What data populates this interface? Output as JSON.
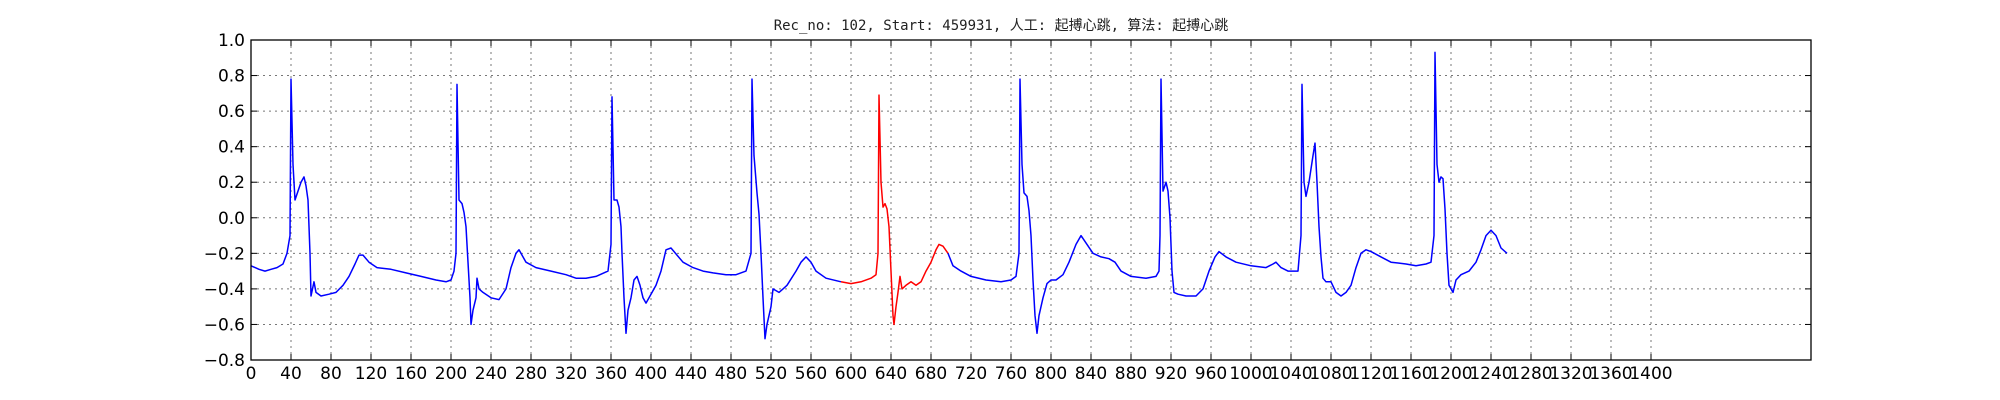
{
  "chart_data": {
    "type": "line",
    "title": "Rec_no: 102, Start: 459931, 人工: 起搏心跳, 算法: 起搏心跳",
    "xlabel": "",
    "ylabel": "",
    "xlim": [
      0,
      1560
    ],
    "ylim": [
      -0.8,
      1.0
    ],
    "grid": true,
    "y_ticks": [
      -0.8,
      -0.6,
      -0.4,
      -0.2,
      0.0,
      0.2,
      0.4,
      0.6,
      0.8,
      1.0
    ],
    "y_tick_labels": [
      "−0.8",
      "−0.6",
      "−0.4",
      "−0.2",
      "0.0",
      "0.2",
      "0.4",
      "0.6",
      "0.8",
      "1.0"
    ],
    "x_ticks": [
      0,
      40,
      80,
      120,
      160,
      200,
      240,
      280,
      320,
      360,
      400,
      440,
      480,
      520,
      560,
      600,
      640,
      680,
      720,
      760,
      800,
      840,
      880,
      920,
      960,
      1000,
      1040,
      1080,
      1120,
      1160,
      1200,
      1240,
      1280,
      1320,
      1360,
      1400
    ],
    "x_tick_labels": [
      "0",
      "40",
      "80",
      "120",
      "160",
      "200",
      "240",
      "280",
      "320",
      "360",
      "400",
      "440",
      "480",
      "520",
      "560",
      "600",
      "640",
      "680",
      "720",
      "760",
      "800",
      "840",
      "880",
      "920",
      "960",
      "1000",
      "1040",
      "1080",
      "1120",
      "1160",
      "1200",
      "1240",
      "1280",
      "1320",
      "1360",
      "1400"
    ],
    "series": [
      {
        "color": "#0000ff",
        "points": [
          [
            0,
            -0.27
          ],
          [
            8,
            -0.29
          ],
          [
            14,
            -0.3
          ],
          [
            20,
            -0.29
          ],
          [
            26,
            -0.28
          ],
          [
            32,
            -0.26
          ],
          [
            36,
            -0.2
          ],
          [
            39,
            -0.1
          ],
          [
            40,
            0.78
          ],
          [
            42,
            0.3
          ],
          [
            44,
            0.1
          ],
          [
            47,
            0.15
          ],
          [
            50,
            0.2
          ],
          [
            53,
            0.23
          ],
          [
            55,
            0.18
          ],
          [
            57,
            0.1
          ],
          [
            59,
            -0.2
          ],
          [
            60,
            -0.44
          ],
          [
            63,
            -0.36
          ],
          [
            65,
            -0.42
          ],
          [
            70,
            -0.44
          ],
          [
            78,
            -0.43
          ],
          [
            85,
            -0.42
          ],
          [
            92,
            -0.38
          ],
          [
            98,
            -0.33
          ],
          [
            104,
            -0.26
          ],
          [
            108,
            -0.21
          ],
          [
            112,
            -0.21
          ],
          [
            118,
            -0.25
          ],
          [
            126,
            -0.28
          ],
          [
            140,
            -0.29
          ],
          [
            155,
            -0.31
          ],
          [
            170,
            -0.33
          ],
          [
            185,
            -0.35
          ],
          [
            195,
            -0.36
          ],
          [
            200,
            -0.35
          ],
          [
            203,
            -0.3
          ],
          [
            205,
            -0.2
          ],
          [
            206,
            0.75
          ],
          [
            208,
            0.1
          ],
          [
            211,
            0.08
          ],
          [
            213,
            0.03
          ],
          [
            215,
            -0.05
          ],
          [
            217,
            -0.25
          ],
          [
            219,
            -0.45
          ],
          [
            220,
            -0.6
          ],
          [
            222,
            -0.52
          ],
          [
            225,
            -0.45
          ],
          [
            226,
            -0.34
          ],
          [
            228,
            -0.4
          ],
          [
            232,
            -0.42
          ],
          [
            240,
            -0.45
          ],
          [
            248,
            -0.46
          ],
          [
            255,
            -0.4
          ],
          [
            260,
            -0.28
          ],
          [
            265,
            -0.2
          ],
          [
            268,
            -0.18
          ],
          [
            275,
            -0.25
          ],
          [
            285,
            -0.28
          ],
          [
            300,
            -0.3
          ],
          [
            315,
            -0.32
          ],
          [
            325,
            -0.34
          ],
          [
            335,
            -0.34
          ],
          [
            345,
            -0.33
          ],
          [
            357,
            -0.3
          ],
          [
            360,
            -0.15
          ],
          [
            361,
            0.68
          ],
          [
            363,
            0.1
          ],
          [
            366,
            0.1
          ],
          [
            368,
            0.06
          ],
          [
            370,
            -0.05
          ],
          [
            371,
            -0.2
          ],
          [
            373,
            -0.45
          ],
          [
            375,
            -0.65
          ],
          [
            377,
            -0.52
          ],
          [
            380,
            -0.45
          ],
          [
            383,
            -0.35
          ],
          [
            386,
            -0.33
          ],
          [
            389,
            -0.38
          ],
          [
            392,
            -0.45
          ],
          [
            395,
            -0.48
          ],
          [
            400,
            -0.43
          ],
          [
            405,
            -0.38
          ],
          [
            410,
            -0.3
          ],
          [
            415,
            -0.18
          ],
          [
            420,
            -0.17
          ],
          [
            426,
            -0.21
          ],
          [
            432,
            -0.25
          ],
          [
            442,
            -0.28
          ],
          [
            452,
            -0.3
          ],
          [
            462,
            -0.31
          ],
          [
            475,
            -0.32
          ],
          [
            485,
            -0.32
          ],
          [
            495,
            -0.3
          ],
          [
            500,
            -0.2
          ],
          [
            501,
            0.78
          ],
          [
            503,
            0.35
          ],
          [
            506,
            0.14
          ],
          [
            508,
            0.02
          ],
          [
            510,
            -0.2
          ],
          [
            512,
            -0.45
          ],
          [
            514,
            -0.68
          ],
          [
            516,
            -0.6
          ],
          [
            520,
            -0.5
          ],
          [
            522,
            -0.4
          ],
          [
            528,
            -0.42
          ],
          [
            532,
            -0.4
          ],
          [
            536,
            -0.38
          ],
          [
            545,
            -0.3
          ],
          [
            550,
            -0.25
          ],
          [
            555,
            -0.22
          ],
          [
            560,
            -0.25
          ],
          [
            565,
            -0.3
          ],
          [
            575,
            -0.34
          ],
          [
            590,
            -0.36
          ]
        ]
      },
      {
        "color": "#ff0000",
        "points": [
          [
            590,
            -0.36
          ],
          [
            600,
            -0.37
          ],
          [
            610,
            -0.36
          ],
          [
            620,
            -0.34
          ],
          [
            625,
            -0.32
          ],
          [
            627,
            -0.2
          ],
          [
            628,
            0.69
          ],
          [
            630,
            0.2
          ],
          [
            632,
            0.06
          ],
          [
            634,
            0.08
          ],
          [
            636,
            0.05
          ],
          [
            638,
            -0.05
          ],
          [
            640,
            -0.3
          ],
          [
            642,
            -0.55
          ],
          [
            643,
            -0.6
          ],
          [
            645,
            -0.5
          ],
          [
            647,
            -0.42
          ],
          [
            649,
            -0.33
          ],
          [
            651,
            -0.4
          ],
          [
            655,
            -0.38
          ],
          [
            660,
            -0.36
          ],
          [
            665,
            -0.38
          ],
          [
            670,
            -0.36
          ],
          [
            675,
            -0.3
          ],
          [
            680,
            -0.25
          ],
          [
            685,
            -0.18
          ],
          [
            688,
            -0.15
          ],
          [
            692,
            -0.16
          ],
          [
            697,
            -0.2
          ]
        ]
      },
      {
        "color": "#0000ff",
        "points": [
          [
            697,
            -0.2
          ],
          [
            702,
            -0.27
          ],
          [
            710,
            -0.3
          ],
          [
            720,
            -0.33
          ],
          [
            735,
            -0.35
          ],
          [
            750,
            -0.36
          ],
          [
            760,
            -0.35
          ],
          [
            765,
            -0.33
          ],
          [
            768,
            -0.2
          ],
          [
            769,
            0.78
          ],
          [
            771,
            0.3
          ],
          [
            773,
            0.14
          ],
          [
            776,
            0.12
          ],
          [
            778,
            0.04
          ],
          [
            780,
            -0.1
          ],
          [
            782,
            -0.35
          ],
          [
            784,
            -0.55
          ],
          [
            786,
            -0.65
          ],
          [
            788,
            -0.55
          ],
          [
            792,
            -0.45
          ],
          [
            796,
            -0.37
          ],
          [
            800,
            -0.35
          ],
          [
            805,
            -0.35
          ],
          [
            812,
            -0.32
          ],
          [
            818,
            -0.25
          ],
          [
            825,
            -0.15
          ],
          [
            830,
            -0.1
          ],
          [
            836,
            -0.15
          ],
          [
            842,
            -0.2
          ],
          [
            850,
            -0.22
          ],
          [
            858,
            -0.23
          ],
          [
            864,
            -0.25
          ],
          [
            870,
            -0.3
          ],
          [
            880,
            -0.33
          ],
          [
            895,
            -0.34
          ],
          [
            905,
            -0.33
          ],
          [
            908,
            -0.3
          ],
          [
            909,
            -0.1
          ],
          [
            910,
            0.78
          ],
          [
            912,
            0.15
          ],
          [
            915,
            0.2
          ],
          [
            917,
            0.15
          ],
          [
            919,
            0.0
          ],
          [
            921,
            -0.3
          ],
          [
            923,
            -0.42
          ],
          [
            927,
            -0.43
          ],
          [
            935,
            -0.44
          ],
          [
            945,
            -0.44
          ],
          [
            952,
            -0.4
          ],
          [
            958,
            -0.3
          ],
          [
            964,
            -0.22
          ],
          [
            968,
            -0.19
          ],
          [
            975,
            -0.22
          ],
          [
            985,
            -0.25
          ],
          [
            1000,
            -0.27
          ],
          [
            1015,
            -0.28
          ],
          [
            1022,
            -0.26
          ],
          [
            1025,
            -0.25
          ],
          [
            1030,
            -0.28
          ],
          [
            1037,
            -0.3
          ],
          [
            1047,
            -0.3
          ],
          [
            1050,
            -0.1
          ],
          [
            1051,
            0.75
          ],
          [
            1053,
            0.2
          ],
          [
            1055,
            0.12
          ],
          [
            1058,
            0.2
          ],
          [
            1062,
            0.35
          ],
          [
            1064,
            0.42
          ],
          [
            1066,
            0.2
          ],
          [
            1068,
            -0.05
          ],
          [
            1070,
            -0.22
          ],
          [
            1072,
            -0.34
          ],
          [
            1075,
            -0.36
          ],
          [
            1080,
            -0.36
          ],
          [
            1085,
            -0.42
          ],
          [
            1090,
            -0.44
          ],
          [
            1095,
            -0.42
          ],
          [
            1100,
            -0.38
          ],
          [
            1105,
            -0.28
          ],
          [
            1110,
            -0.2
          ],
          [
            1115,
            -0.18
          ],
          [
            1120,
            -0.19
          ],
          [
            1130,
            -0.22
          ],
          [
            1140,
            -0.25
          ],
          [
            1155,
            -0.26
          ],
          [
            1165,
            -0.27
          ],
          [
            1175,
            -0.26
          ],
          [
            1180,
            -0.25
          ],
          [
            1183,
            -0.1
          ],
          [
            1184,
            0.93
          ],
          [
            1186,
            0.3
          ],
          [
            1188,
            0.2
          ],
          [
            1190,
            0.23
          ],
          [
            1192,
            0.22
          ],
          [
            1194,
            0.05
          ],
          [
            1196,
            -0.2
          ],
          [
            1198,
            -0.38
          ],
          [
            1202,
            -0.42
          ],
          [
            1205,
            -0.35
          ],
          [
            1210,
            -0.32
          ],
          [
            1218,
            -0.3
          ],
          [
            1225,
            -0.25
          ],
          [
            1230,
            -0.18
          ],
          [
            1235,
            -0.1
          ],
          [
            1240,
            -0.07
          ],
          [
            1245,
            -0.1
          ],
          [
            1250,
            -0.17
          ],
          [
            1256,
            -0.2
          ]
        ]
      }
    ]
  }
}
